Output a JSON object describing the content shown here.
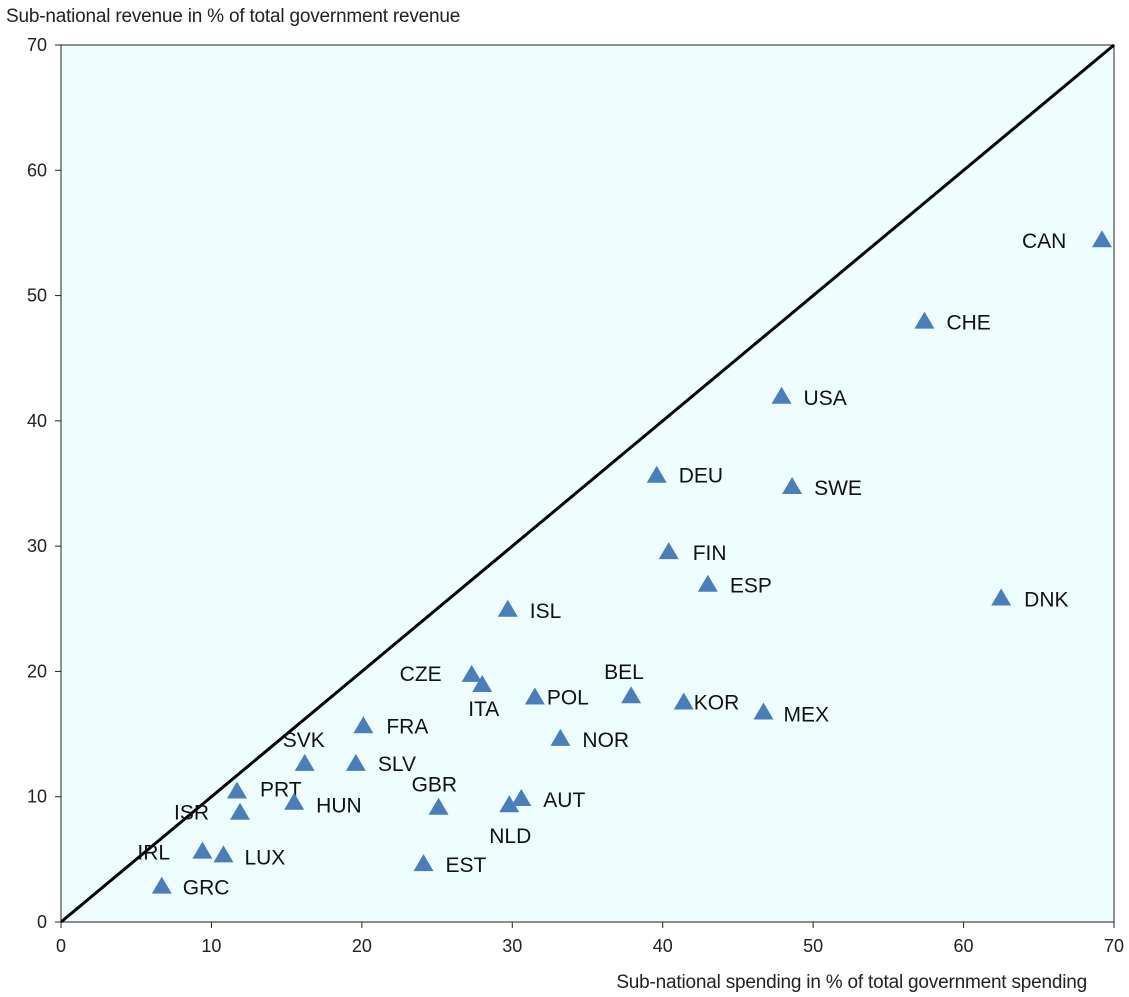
{
  "chart_data": {
    "type": "scatter",
    "ylabel": "Sub-national revenue in % of total government revenue",
    "xlabel": "Sub-national spending in % of total government spending",
    "xlim": [
      0,
      70
    ],
    "ylim": [
      0,
      70
    ],
    "xticks": [
      0,
      10,
      20,
      30,
      40,
      50,
      60,
      70
    ],
    "yticks": [
      0,
      10,
      20,
      30,
      40,
      50,
      60,
      70
    ],
    "reference_line": "y = x (45-degree line)",
    "grid": false,
    "marker": "triangle",
    "colors": {
      "marker": "#4a7ebb",
      "plot_background": "#eefdfd",
      "line": "#000000"
    },
    "points": [
      {
        "label": "CAN",
        "x": 69.2,
        "y": 54.5
      },
      {
        "label": "CHE",
        "x": 57.4,
        "y": 48.0
      },
      {
        "label": "USA",
        "x": 47.9,
        "y": 42.0
      },
      {
        "label": "SWE",
        "x": 48.6,
        "y": 34.8
      },
      {
        "label": "DEU",
        "x": 39.6,
        "y": 35.7
      },
      {
        "label": "FIN",
        "x": 40.4,
        "y": 29.6
      },
      {
        "label": "ESP",
        "x": 43.0,
        "y": 27.0
      },
      {
        "label": "DNK",
        "x": 62.5,
        "y": 25.9
      },
      {
        "label": "ISL",
        "x": 29.7,
        "y": 25.0
      },
      {
        "label": "CZE",
        "x": 27.3,
        "y": 19.8
      },
      {
        "label": "ITA",
        "x": 28.0,
        "y": 19.0
      },
      {
        "label": "POL",
        "x": 31.5,
        "y": 18.0
      },
      {
        "label": "BEL",
        "x": 37.9,
        "y": 18.1
      },
      {
        "label": "KOR",
        "x": 41.4,
        "y": 17.6
      },
      {
        "label": "MEX",
        "x": 46.7,
        "y": 16.8
      },
      {
        "label": "FRA",
        "x": 20.1,
        "y": 15.7
      },
      {
        "label": "NOR",
        "x": 33.2,
        "y": 14.7
      },
      {
        "label": "SVK",
        "x": 16.2,
        "y": 12.7
      },
      {
        "label": "SLV",
        "x": 19.6,
        "y": 12.7
      },
      {
        "label": "PRT",
        "x": 11.7,
        "y": 10.5
      },
      {
        "label": "HUN",
        "x": 15.5,
        "y": 9.6
      },
      {
        "label": "GBR",
        "x": 25.1,
        "y": 9.2
      },
      {
        "label": "AUT",
        "x": 30.6,
        "y": 9.9
      },
      {
        "label": "NLD",
        "x": 29.8,
        "y": 9.4
      },
      {
        "label": "ISR",
        "x": 11.9,
        "y": 8.8
      },
      {
        "label": "IRL",
        "x": 9.4,
        "y": 5.7
      },
      {
        "label": "LUX",
        "x": 10.8,
        "y": 5.4
      },
      {
        "label": "EST",
        "x": 24.1,
        "y": 4.7
      },
      {
        "label": "GRC",
        "x": 6.7,
        "y": 2.9
      }
    ]
  }
}
